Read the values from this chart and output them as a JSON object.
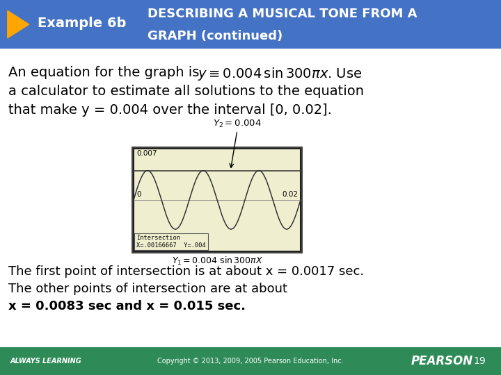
{
  "header_bg_color": "#4472C4",
  "footer_bg_color": "#2E8B57",
  "body_bg_color": "#FFFFFF",
  "header_arrow_color": "#FFA500",
  "header_text_example": "Example 6b",
  "header_title_line1": "DESCRIBING A MUSICAL TONE FROM A",
  "header_title_line2": "GRAPH (continued)",
  "body_line2": "a calculator to estimate all solutions to the equation",
  "body_line3": "that make y = 0.004 over the interval [0, 0.02].",
  "conclusion_line1": "The first point of intersection is at about x = 0.0017 sec.",
  "conclusion_line2": "The other points of intersection are at about",
  "conclusion_line3": "x = 0.0083 sec and x = 0.015 sec.",
  "footer_left": "ALWAYS LEARNING",
  "footer_center": "Copyright © 2013, 2009, 2005 Pearson Education, Inc.",
  "footer_right": "PEARSON",
  "footer_page": "19"
}
